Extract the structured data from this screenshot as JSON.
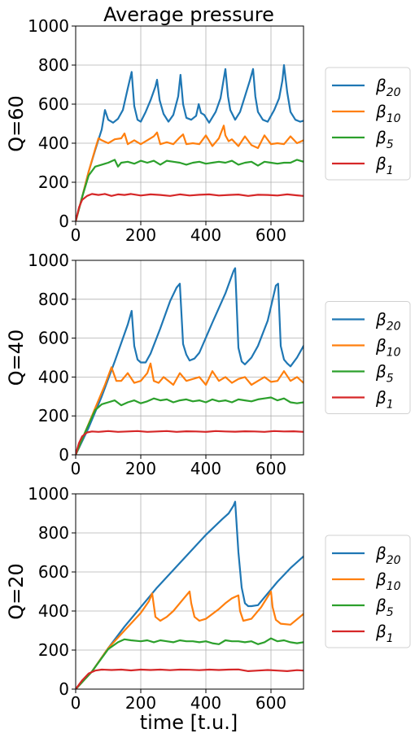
{
  "figure": {
    "title": "Average pressure",
    "xlabel": "time [t.u.]"
  },
  "colors": {
    "b20": "#1f77b4",
    "b10": "#ff7f0e",
    "b5": "#2ca02c",
    "b1": "#d62728"
  },
  "chart_data": [
    {
      "type": "line",
      "title": "Average pressure",
      "ylabel": "Q=60",
      "xlabel": "",
      "xlim": [
        0,
        700
      ],
      "ylim": [
        0,
        1000
      ],
      "xticks": [
        0,
        200,
        400,
        600
      ],
      "yticks": [
        0,
        200,
        400,
        600,
        800,
        1000
      ],
      "grid": true,
      "legend_position": "right",
      "series": [
        {
          "name": "β20",
          "key": "b20",
          "color": "#1f77b4",
          "x": [
            0,
            20,
            40,
            60,
            80,
            90,
            100,
            115,
            130,
            145,
            160,
            172,
            180,
            190,
            200,
            215,
            230,
            245,
            250,
            258,
            270,
            285,
            300,
            315,
            322,
            330,
            340,
            355,
            370,
            378,
            385,
            395,
            410,
            430,
            445,
            460,
            468,
            475,
            490,
            505,
            520,
            535,
            545,
            552,
            560,
            575,
            590,
            610,
            625,
            635,
            640,
            650,
            660,
            675,
            690,
            700
          ],
          "y": [
            0,
            125,
            255,
            365,
            470,
            570,
            520,
            505,
            525,
            570,
            680,
            765,
            590,
            520,
            510,
            560,
            620,
            690,
            725,
            620,
            550,
            510,
            545,
            640,
            750,
            600,
            530,
            520,
            540,
            600,
            555,
            545,
            505,
            560,
            630,
            780,
            640,
            570,
            520,
            560,
            640,
            720,
            780,
            640,
            560,
            520,
            510,
            570,
            630,
            720,
            800,
            660,
            560,
            520,
            510,
            515
          ]
        },
        {
          "name": "β10",
          "key": "b10",
          "color": "#ff7f0e",
          "x": [
            0,
            20,
            40,
            60,
            70,
            80,
            100,
            120,
            140,
            150,
            160,
            180,
            200,
            220,
            240,
            250,
            260,
            280,
            300,
            320,
            330,
            340,
            360,
            380,
            400,
            420,
            440,
            455,
            460,
            470,
            480,
            500,
            520,
            540,
            560,
            580,
            600,
            620,
            640,
            660,
            680,
            700
          ],
          "y": [
            0,
            125,
            255,
            370,
            425,
            415,
            400,
            420,
            425,
            450,
            395,
            415,
            395,
            415,
            435,
            455,
            395,
            405,
            395,
            430,
            445,
            395,
            400,
            395,
            440,
            385,
            425,
            490,
            440,
            410,
            420,
            385,
            435,
            390,
            375,
            440,
            395,
            400,
            395,
            435,
            400,
            415
          ]
        },
        {
          "name": "β5",
          "key": "b5",
          "color": "#2ca02c",
          "x": [
            0,
            20,
            40,
            60,
            80,
            100,
            120,
            130,
            140,
            160,
            180,
            200,
            220,
            240,
            260,
            280,
            300,
            320,
            340,
            360,
            380,
            400,
            420,
            440,
            460,
            480,
            500,
            520,
            540,
            560,
            580,
            600,
            620,
            640,
            660,
            680,
            700
          ],
          "y": [
            0,
            125,
            235,
            280,
            290,
            300,
            315,
            280,
            300,
            305,
            295,
            310,
            300,
            310,
            290,
            310,
            305,
            300,
            290,
            300,
            305,
            295,
            300,
            305,
            300,
            310,
            290,
            300,
            305,
            285,
            305,
            300,
            295,
            300,
            300,
            315,
            305
          ]
        },
        {
          "name": "β1",
          "key": "b1",
          "color": "#d62728",
          "x": [
            0,
            10,
            20,
            35,
            50,
            70,
            90,
            110,
            130,
            150,
            170,
            200,
            230,
            260,
            290,
            320,
            350,
            380,
            410,
            440,
            470,
            500,
            530,
            560,
            590,
            620,
            650,
            680,
            700
          ],
          "y": [
            0,
            70,
            110,
            130,
            140,
            135,
            140,
            130,
            138,
            135,
            140,
            132,
            138,
            135,
            130,
            138,
            132,
            136,
            138,
            132,
            135,
            137,
            130,
            136,
            135,
            132,
            138,
            133,
            130
          ]
        }
      ]
    },
    {
      "type": "line",
      "title": "",
      "ylabel": "Q=40",
      "xlabel": "",
      "xlim": [
        0,
        700
      ],
      "ylim": [
        0,
        1000
      ],
      "xticks": [
        0,
        200,
        400,
        600
      ],
      "yticks": [
        0,
        200,
        400,
        600,
        800,
        1000
      ],
      "grid": true,
      "legend_position": "right",
      "series": [
        {
          "name": "β20",
          "key": "b20",
          "color": "#1f77b4",
          "x": [
            0,
            40,
            80,
            120,
            160,
            172,
            180,
            190,
            200,
            215,
            230,
            260,
            290,
            310,
            320,
            330,
            340,
            350,
            365,
            380,
            420,
            460,
            485,
            490,
            500,
            510,
            520,
            540,
            560,
            590,
            615,
            622,
            630,
            640,
            650,
            660,
            680,
            700
          ],
          "y": [
            0,
            140,
            300,
            480,
            670,
            740,
            560,
            490,
            475,
            475,
            520,
            650,
            790,
            860,
            880,
            570,
            515,
            485,
            495,
            525,
            680,
            830,
            945,
            960,
            550,
            480,
            465,
            500,
            560,
            690,
            870,
            880,
            560,
            490,
            470,
            455,
            500,
            560
          ]
        },
        {
          "name": "β10",
          "key": "b10",
          "color": "#ff7f0e",
          "x": [
            0,
            30,
            60,
            90,
            110,
            125,
            140,
            160,
            180,
            200,
            220,
            230,
            240,
            255,
            270,
            300,
            320,
            340,
            360,
            380,
            400,
            420,
            440,
            460,
            480,
            500,
            520,
            540,
            560,
            580,
            600,
            620,
            640,
            660,
            680,
            700
          ],
          "y": [
            0,
            120,
            240,
            360,
            450,
            380,
            380,
            420,
            370,
            380,
            420,
            470,
            380,
            370,
            400,
            360,
            420,
            380,
            390,
            400,
            360,
            430,
            380,
            400,
            370,
            390,
            400,
            360,
            380,
            400,
            375,
            380,
            430,
            380,
            400,
            370
          ]
        },
        {
          "name": "β5",
          "key": "b5",
          "color": "#2ca02c",
          "x": [
            0,
            30,
            60,
            80,
            100,
            120,
            140,
            160,
            180,
            200,
            220,
            240,
            260,
            280,
            300,
            320,
            340,
            360,
            380,
            400,
            420,
            440,
            460,
            480,
            500,
            520,
            540,
            560,
            580,
            600,
            620,
            640,
            660,
            680,
            700
          ],
          "y": [
            0,
            120,
            230,
            260,
            270,
            280,
            255,
            270,
            280,
            265,
            275,
            290,
            280,
            285,
            270,
            280,
            285,
            275,
            280,
            270,
            285,
            275,
            280,
            270,
            285,
            280,
            275,
            285,
            290,
            295,
            280,
            290,
            270,
            265,
            270
          ]
        },
        {
          "name": "β1",
          "key": "b1",
          "color": "#d62728",
          "x": [
            0,
            10,
            20,
            35,
            50,
            70,
            100,
            130,
            160,
            190,
            220,
            250,
            280,
            310,
            340,
            370,
            400,
            430,
            460,
            490,
            520,
            550,
            580,
            610,
            640,
            670,
            700
          ],
          "y": [
            0,
            60,
            95,
            115,
            120,
            118,
            122,
            118,
            120,
            122,
            118,
            120,
            122,
            118,
            121,
            120,
            118,
            122,
            120,
            119,
            121,
            120,
            118,
            122,
            120,
            121,
            118
          ]
        }
      ]
    },
    {
      "type": "line",
      "title": "",
      "ylabel": "Q=20",
      "xlabel": "time [t.u.]",
      "xlim": [
        0,
        700
      ],
      "ylim": [
        0,
        1000
      ],
      "xticks": [
        0,
        200,
        400,
        600
      ],
      "yticks": [
        0,
        200,
        400,
        600,
        800,
        1000
      ],
      "grid": true,
      "legend_position": "right",
      "series": [
        {
          "name": "β20",
          "key": "b20",
          "color": "#1f77b4",
          "x": [
            0,
            50,
            100,
            150,
            200,
            250,
            300,
            350,
            400,
            450,
            470,
            485,
            490,
            500,
            510,
            520,
            530,
            540,
            560,
            580,
            620,
            660,
            700
          ],
          "y": [
            0,
            90,
            210,
            320,
            420,
            520,
            610,
            700,
            790,
            870,
            900,
            940,
            960,
            700,
            520,
            440,
            425,
            425,
            430,
            470,
            550,
            620,
            680
          ]
        },
        {
          "name": "β10",
          "key": "b10",
          "color": "#ff7f0e",
          "x": [
            0,
            50,
            100,
            150,
            200,
            225,
            235,
            245,
            260,
            280,
            300,
            330,
            350,
            355,
            365,
            380,
            400,
            420,
            440,
            460,
            480,
            500,
            505,
            515,
            540,
            570,
            600,
            605,
            615,
            630,
            660,
            700
          ],
          "y": [
            0,
            90,
            210,
            300,
            390,
            450,
            490,
            370,
            350,
            370,
            400,
            460,
            500,
            440,
            370,
            350,
            360,
            385,
            410,
            440,
            465,
            480,
            400,
            350,
            360,
            420,
            500,
            420,
            355,
            335,
            330,
            385
          ]
        },
        {
          "name": "β5",
          "key": "b5",
          "color": "#2ca02c",
          "x": [
            0,
            50,
            100,
            130,
            150,
            170,
            200,
            220,
            240,
            260,
            280,
            300,
            320,
            340,
            360,
            380,
            400,
            420,
            440,
            460,
            480,
            500,
            520,
            540,
            560,
            580,
            600,
            620,
            640,
            660,
            680,
            700
          ],
          "y": [
            0,
            90,
            205,
            240,
            255,
            250,
            245,
            250,
            240,
            250,
            245,
            240,
            250,
            245,
            245,
            240,
            245,
            235,
            230,
            250,
            245,
            245,
            240,
            245,
            230,
            240,
            260,
            245,
            250,
            240,
            235,
            240
          ]
        },
        {
          "name": "β1",
          "key": "b1",
          "color": "#d62728",
          "x": [
            0,
            20,
            40,
            60,
            80,
            110,
            140,
            170,
            200,
            230,
            260,
            290,
            320,
            350,
            380,
            410,
            440,
            470,
            500,
            530,
            560,
            590,
            620,
            650,
            680,
            700
          ],
          "y": [
            0,
            45,
            80,
            95,
            100,
            98,
            100,
            96,
            100,
            98,
            100,
            97,
            100,
            99,
            97,
            100,
            98,
            100,
            101,
            92,
            95,
            98,
            95,
            92,
            97,
            95
          ]
        }
      ]
    }
  ]
}
